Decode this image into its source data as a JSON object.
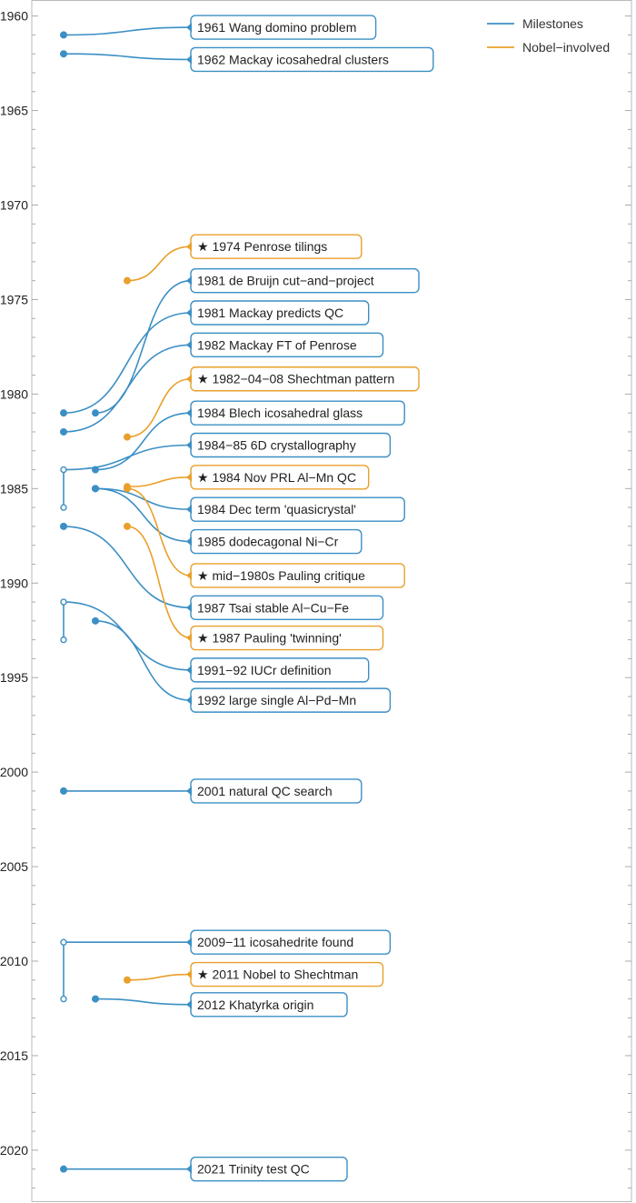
{
  "chart_data": {
    "type": "timeline",
    "ylim": [
      1959.2,
      2022.7
    ],
    "y_ticks": [
      1960,
      1965,
      1970,
      1975,
      1980,
      1985,
      1990,
      1995,
      2000,
      2005,
      2010,
      2015,
      2020
    ],
    "series": [
      {
        "name": "Milestones",
        "color": "#3b8fc4"
      },
      {
        "name": "Nobel−involved",
        "color": "#e9a02c"
      }
    ],
    "legend": "top-right",
    "events": [
      {
        "label": "1961 Wang domino problem",
        "series": 0,
        "date": 1961.0,
        "label_pos": 1960.6,
        "lane": 0,
        "dot": "filled"
      },
      {
        "label": "1962 Mackay icosahedral clusters",
        "series": 0,
        "date": 1962.0,
        "label_pos": 1962.3,
        "lane": 0,
        "dot": "filled"
      },
      {
        "label": "★ 1974 Penrose tilings",
        "series": 1,
        "date": 1974.0,
        "label_pos": 1972.2,
        "lane": 2,
        "dot": "filled"
      },
      {
        "label": "1981 de Bruijn cut−and−project",
        "series": 0,
        "date": 1981.0,
        "label_pos": 1974.0,
        "lane": 1,
        "dot": "filled"
      },
      {
        "label": "1981 Mackay predicts QC",
        "series": 0,
        "date": 1981.0,
        "label_pos": 1975.7,
        "lane": 0,
        "dot": "filled"
      },
      {
        "label": "1982 Mackay FT of Penrose",
        "series": 0,
        "date": 1982.0,
        "label_pos": 1977.4,
        "lane": 0,
        "dot": "filled"
      },
      {
        "label": "★ 1982−04−08 Shechtman pattern",
        "series": 1,
        "date": 1982.27,
        "label_pos": 1979.2,
        "lane": 2,
        "dot": "filled"
      },
      {
        "label": "1984 Blech icosahedral glass",
        "series": 0,
        "date": 1984.0,
        "label_pos": 1981.0,
        "lane": 1,
        "dot": "filled"
      },
      {
        "label": "1984−85 6D crystallography",
        "series": 0,
        "date": 1984.0,
        "date_end": 1986.0,
        "label_pos": 1982.7,
        "lane": 0,
        "dot": "open"
      },
      {
        "label": "★ 1984 Nov PRL Al−Mn QC",
        "series": 1,
        "date": 1984.9,
        "label_pos": 1984.4,
        "lane": 2,
        "dot": "filled"
      },
      {
        "label": "1984 Dec term 'quasicrystal'",
        "series": 0,
        "date": 1985.0,
        "label_pos": 1986.1,
        "lane": 1,
        "dot": "filled"
      },
      {
        "label": "1985 dodecagonal Ni−Cr",
        "series": 0,
        "date": 1985.0,
        "label_pos": 1987.8,
        "lane": 1,
        "dot": "filled"
      },
      {
        "label": "★ mid−1980s Pauling critique",
        "series": 1,
        "date": 1985.0,
        "label_pos": 1989.6,
        "lane": 2,
        "dot": "filled"
      },
      {
        "label": "1987 Tsai stable Al−Cu−Fe",
        "series": 0,
        "date": 1987.0,
        "label_pos": 1991.3,
        "lane": 0,
        "dot": "filled"
      },
      {
        "label": "★ 1987 Pauling 'twinning'",
        "series": 1,
        "date": 1987.0,
        "label_pos": 1992.9,
        "lane": 2,
        "dot": "filled"
      },
      {
        "label": "1991−92 IUCr definition",
        "series": 0,
        "date": 1991.0,
        "date_end": 1993.0,
        "label_pos": 1994.6,
        "lane": 0,
        "dot": "open"
      },
      {
        "label": "1992 large single Al−Pd−Mn",
        "series": 0,
        "date": 1992.0,
        "label_pos": 1996.2,
        "lane": 1,
        "dot": "filled"
      },
      {
        "label": "2001 natural QC search",
        "series": 0,
        "date": 2001.0,
        "label_pos": 2001.0,
        "lane": 0,
        "dot": "filled"
      },
      {
        "label": "2009−11 icosahedrite found",
        "series": 0,
        "date": 2009.0,
        "date_end": 2012.0,
        "label_pos": 2009.0,
        "lane": 0,
        "dot": "open"
      },
      {
        "label": "★ 2011 Nobel to Shechtman",
        "series": 1,
        "date": 2011.0,
        "label_pos": 2010.7,
        "lane": 2,
        "dot": "filled"
      },
      {
        "label": "2012 Khatyrka origin",
        "series": 0,
        "date": 2012.0,
        "label_pos": 2012.3,
        "lane": 1,
        "dot": "filled"
      },
      {
        "label": "2021 Trinity test QC",
        "series": 0,
        "date": 2021.0,
        "label_pos": 2021.0,
        "lane": 0,
        "dot": "filled"
      }
    ]
  }
}
